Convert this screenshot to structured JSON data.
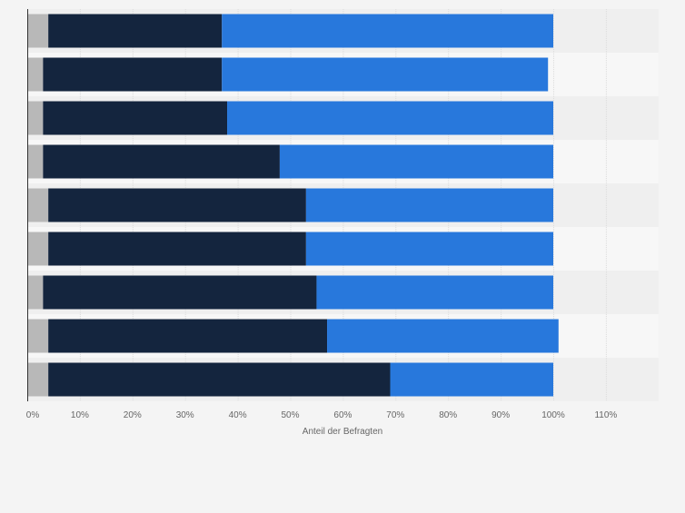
{
  "chart_data": {
    "type": "bar",
    "orientation": "horizontal",
    "stacked": true,
    "categories": [
      "",
      "",
      "",
      "",
      "",
      "",
      "",
      "",
      ""
    ],
    "series": [
      {
        "values": [
          4,
          3,
          3,
          3,
          4,
          4,
          3,
          4,
          4
        ]
      },
      {
        "values": [
          33,
          34,
          35,
          45,
          49,
          49,
          52,
          53,
          65
        ]
      },
      {
        "values": [
          63,
          62,
          62,
          52,
          47,
          47,
          45,
          44,
          31
        ]
      }
    ],
    "colors": [
      "#b8b8b8",
      "#14253e",
      "#2878dc"
    ],
    "xlabel": "Anteil der Befragten",
    "ylabel": "",
    "xlim": [
      0,
      120
    ],
    "xticks": [
      0,
      10,
      20,
      30,
      40,
      50,
      60,
      70,
      80,
      90,
      100,
      110
    ],
    "xtick_labels": [
      "0%",
      "10%",
      "20%",
      "30%",
      "40%",
      "50%",
      "60%",
      "70%",
      "80%",
      "90%",
      "100%",
      "110%"
    ],
    "grid": true,
    "legend": "none"
  }
}
